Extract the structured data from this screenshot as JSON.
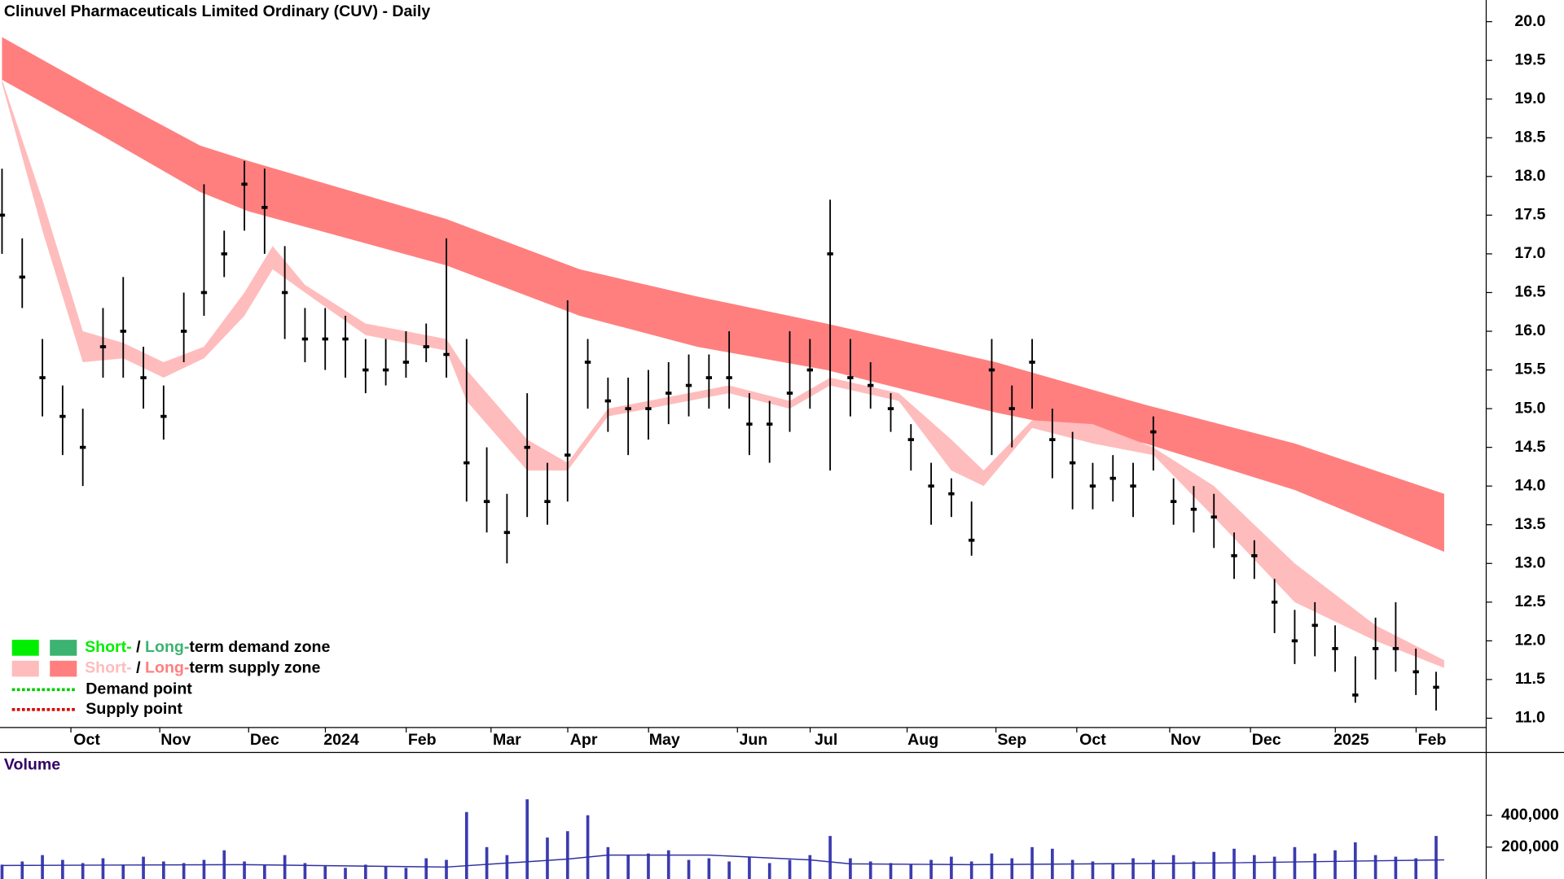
{
  "chart_data": {
    "type": "candlestick",
    "title": "Clinuvel Pharmaceuticals Limited Ordinary (CUV) - Daily",
    "x": [
      0,
      5,
      10,
      15,
      20,
      25,
      30,
      35,
      40,
      45,
      50,
      55,
      60,
      65,
      70,
      75,
      80,
      85,
      90,
      95,
      100,
      105,
      110,
      115,
      120,
      125,
      130,
      135,
      140,
      145,
      150,
      155,
      160,
      165,
      170,
      175,
      180,
      185,
      190,
      195,
      200,
      205,
      210,
      215,
      220,
      225,
      230,
      235,
      240,
      245,
      250,
      255,
      260,
      265,
      270,
      275,
      280,
      285,
      290,
      295,
      300,
      305,
      310,
      315,
      320,
      325,
      330,
      335,
      340,
      345,
      350,
      355
    ],
    "high": [
      18.1,
      17.2,
      15.9,
      15.3,
      15.0,
      16.3,
      16.7,
      15.8,
      15.3,
      16.5,
      17.9,
      17.3,
      18.2,
      18.1,
      17.1,
      16.3,
      16.3,
      16.2,
      15.9,
      15.9,
      16.0,
      16.1,
      17.2,
      15.9,
      14.5,
      13.9,
      15.2,
      14.3,
      16.4,
      15.9,
      15.4,
      15.4,
      15.5,
      15.6,
      15.7,
      15.7,
      16.0,
      15.2,
      15.1,
      16.0,
      15.9,
      17.7,
      15.9,
      15.6,
      15.2,
      14.8,
      14.3,
      14.1,
      13.8,
      15.9,
      15.3,
      15.9,
      15.0,
      14.7,
      14.3,
      14.4,
      14.3,
      14.9,
      14.1,
      14.0,
      13.9,
      13.4,
      13.3,
      12.8,
      12.4,
      12.5,
      12.2,
      11.8,
      12.3,
      12.5,
      11.9,
      11.6
    ],
    "low": [
      17.0,
      16.3,
      14.9,
      14.4,
      14.0,
      15.4,
      15.4,
      15.0,
      14.6,
      15.6,
      16.2,
      16.7,
      17.3,
      17.0,
      15.9,
      15.6,
      15.5,
      15.4,
      15.2,
      15.3,
      15.4,
      15.6,
      15.4,
      13.8,
      13.4,
      13.0,
      13.6,
      13.5,
      13.8,
      15.0,
      14.7,
      14.4,
      14.6,
      14.8,
      14.9,
      15.0,
      15.0,
      14.4,
      14.3,
      14.7,
      15.0,
      14.2,
      14.9,
      15.0,
      14.7,
      14.2,
      13.5,
      13.6,
      13.1,
      14.4,
      14.5,
      15.0,
      14.1,
      13.7,
      13.7,
      13.8,
      13.6,
      14.2,
      13.5,
      13.4,
      13.2,
      12.8,
      12.8,
      12.1,
      11.7,
      11.8,
      11.6,
      11.2,
      11.5,
      11.6,
      11.3,
      11.1
    ],
    "close": [
      17.5,
      16.7,
      15.4,
      14.9,
      14.5,
      15.8,
      16.0,
      15.4,
      14.9,
      16.0,
      16.5,
      17.0,
      17.9,
      17.6,
      16.5,
      15.9,
      15.9,
      15.9,
      15.5,
      15.5,
      15.6,
      15.8,
      15.7,
      14.3,
      13.8,
      13.4,
      14.5,
      13.8,
      14.4,
      15.6,
      15.1,
      15.0,
      15.0,
      15.2,
      15.3,
      15.4,
      15.4,
      14.8,
      14.8,
      15.2,
      15.5,
      17.0,
      15.4,
      15.3,
      15.0,
      14.6,
      14.0,
      13.9,
      13.3,
      15.5,
      15.0,
      15.6,
      14.6,
      14.3,
      14.0,
      14.1,
      14.0,
      14.7,
      13.8,
      13.7,
      13.6,
      13.1,
      13.1,
      12.5,
      12.0,
      12.2,
      11.9,
      11.3,
      11.9,
      11.9,
      11.6,
      11.4
    ],
    "xlim": [
      -0.5,
      367.4
    ],
    "xticks": [
      {
        "value": 21,
        "label": "Oct"
      },
      {
        "value": 43,
        "label": "Nov"
      },
      {
        "value": 65,
        "label": "Dec"
      },
      {
        "value": 84,
        "label": "2024"
      },
      {
        "value": 104,
        "label": "Feb"
      },
      {
        "value": 125,
        "label": "Mar"
      },
      {
        "value": 144,
        "label": "Apr"
      },
      {
        "value": 164,
        "label": "May"
      },
      {
        "value": 186,
        "label": "Jun"
      },
      {
        "value": 204,
        "label": "Jul"
      },
      {
        "value": 228,
        "label": "Aug"
      },
      {
        "value": 250,
        "label": "Sep"
      },
      {
        "value": 270,
        "label": "Oct"
      },
      {
        "value": 293,
        "label": "Nov"
      },
      {
        "value": 313,
        "label": "Dec"
      },
      {
        "value": 334,
        "label": "2025"
      },
      {
        "value": 354,
        "label": "Feb"
      }
    ],
    "ylim": [
      10.88,
      20.28
    ],
    "yticks": [
      {
        "value": 11,
        "label": "11.0"
      },
      {
        "value": 11.5,
        "label": "11.5"
      },
      {
        "value": 12,
        "label": "12.0"
      },
      {
        "value": 12.5,
        "label": "12.5"
      },
      {
        "value": 13,
        "label": "13.0"
      },
      {
        "value": 13.5,
        "label": "13.5"
      },
      {
        "value": 14,
        "label": "14.0"
      },
      {
        "value": 14.5,
        "label": "14.5"
      },
      {
        "value": 15,
        "label": "15.0"
      },
      {
        "value": 15.5,
        "label": "15.5"
      },
      {
        "value": 16,
        "label": "16.0"
      },
      {
        "value": 16.5,
        "label": "16.5"
      },
      {
        "value": 17,
        "label": "17.0"
      },
      {
        "value": 17.5,
        "label": "17.5"
      },
      {
        "value": 18,
        "label": "18.0"
      },
      {
        "value": 18.5,
        "label": "18.5"
      },
      {
        "value": 19,
        "label": "19.0"
      },
      {
        "value": 19.5,
        "label": "19.5"
      },
      {
        "value": 20,
        "label": "20.0"
      }
    ],
    "long_band": {
      "color": "#ff7f7f",
      "x": [
        0,
        24,
        49,
        61,
        110,
        143,
        172,
        204,
        246,
        283,
        320,
        357
      ],
      "upper": [
        19.8,
        19.1,
        18.4,
        18.2,
        17.45,
        16.8,
        16.45,
        16.1,
        15.6,
        15.05,
        14.55,
        13.9
      ],
      "lower": [
        19.25,
        18.55,
        17.8,
        17.55,
        16.85,
        16.2,
        15.8,
        15.5,
        14.95,
        14.55,
        13.95,
        13.15
      ]
    },
    "short_band": {
      "color": "#ffbcbc",
      "x": [
        0,
        10,
        20,
        30,
        40,
        50,
        60,
        67,
        75,
        90,
        110,
        115,
        130,
        140,
        150,
        180,
        195,
        205,
        222,
        235,
        243,
        255,
        270,
        285,
        300,
        320,
        340,
        357
      ],
      "upper": [
        19.25,
        17.7,
        16.0,
        15.85,
        15.6,
        15.8,
        16.5,
        17.1,
        16.6,
        16.1,
        15.9,
        15.5,
        14.6,
        14.3,
        15.0,
        15.3,
        15.1,
        15.4,
        15.2,
        14.6,
        14.2,
        14.85,
        14.8,
        14.5,
        14.0,
        13.0,
        12.2,
        11.75
      ],
      "lower": [
        19.2,
        17.3,
        15.6,
        15.65,
        15.4,
        15.65,
        16.2,
        16.8,
        16.5,
        15.95,
        15.75,
        15.1,
        14.2,
        14.2,
        14.9,
        15.2,
        15.0,
        15.3,
        15.1,
        14.2,
        14.0,
        14.75,
        14.55,
        14.4,
        13.6,
        12.5,
        12.0,
        11.65
      ]
    },
    "candle_color": "#000000",
    "volume": {
      "label": "Volume",
      "color": "#3b3bb0",
      "ylim": [
        0,
        794000
      ],
      "yticks": [
        {
          "value": 200000,
          "label": "200,000"
        },
        {
          "value": 400000,
          "label": "400,000"
        }
      ],
      "values": [
        90000,
        110000,
        150000,
        120000,
        100000,
        130000,
        90000,
        140000,
        110000,
        100000,
        120000,
        180000,
        110000,
        90000,
        150000,
        100000,
        80000,
        70000,
        90000,
        80000,
        70000,
        130000,
        120000,
        420000,
        200000,
        150000,
        500000,
        260000,
        300000,
        400000,
        200000,
        150000,
        160000,
        180000,
        120000,
        130000,
        110000,
        140000,
        100000,
        120000,
        150000,
        270000,
        130000,
        110000,
        100000,
        90000,
        120000,
        140000,
        110000,
        160000,
        130000,
        200000,
        190000,
        120000,
        110000,
        100000,
        130000,
        120000,
        150000,
        110000,
        170000,
        190000,
        150000,
        140000,
        200000,
        160000,
        180000,
        230000,
        150000,
        140000,
        130000,
        270000
      ],
      "ma": {
        "color": "#3030a0",
        "x": [
          0,
          60,
          110,
          125,
          140,
          150,
          175,
          200,
          210,
          240,
          300,
          357
        ],
        "values": [
          85000,
          90000,
          75000,
          100000,
          125000,
          150000,
          150000,
          120000,
          95000,
          90000,
          100000,
          120000
        ]
      }
    },
    "legend": {
      "zones": [
        {
          "colors": [
            "#00ee00",
            "#3cb371"
          ],
          "short": "Short-",
          "sep": " / ",
          "long": "Long-",
          "rest": "term demand zone"
        },
        {
          "colors": [
            "#ffbcbc",
            "#ff7f7f"
          ],
          "short": "Short-",
          "sep": " / ",
          "long": "Long-",
          "rest": "term supply zone"
        }
      ],
      "points": [
        {
          "color": "#00cc00",
          "text": "Demand point"
        },
        {
          "color": "#dd0000",
          "text": "Supply point"
        }
      ]
    }
  }
}
